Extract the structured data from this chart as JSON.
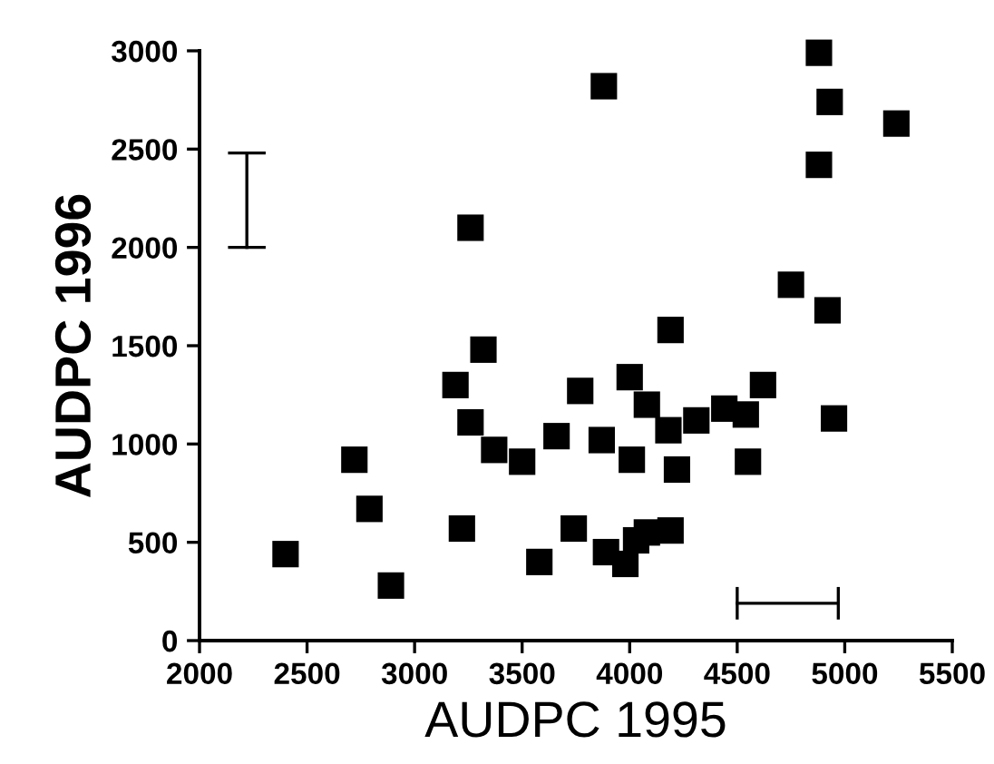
{
  "chart_data": {
    "type": "scatter",
    "xlabel": "AUDPC 1995",
    "ylabel": "AUDPC 1996",
    "series": [
      {
        "color": "#000000",
        "marker": "square",
        "x": [
          2400,
          2720,
          2790,
          2890,
          3190,
          3320,
          3260,
          3370,
          3500,
          3220,
          3580,
          3660,
          3770,
          3740,
          3870,
          3890,
          3980,
          4000,
          4010,
          4030,
          4080,
          4080,
          4180,
          4190,
          4220,
          4310,
          4440,
          4540,
          4550,
          4620,
          4950,
          4190,
          3260,
          3880,
          4880,
          4930,
          5240,
          4880,
          4750,
          4920
        ],
        "values": [
          440,
          920,
          670,
          280,
          1300,
          1480,
          1110,
          970,
          910,
          570,
          400,
          1040,
          1270,
          570,
          1020,
          450,
          390,
          1340,
          920,
          510,
          1200,
          550,
          1070,
          560,
          870,
          1120,
          1180,
          1150,
          910,
          1300,
          1130,
          1580,
          2100,
          2820,
          2990,
          2740,
          2630,
          2420,
          1810,
          1680
        ]
      },
      {
        "type": "line",
        "color": "#000000",
        "marker": "none",
        "x": [
          2220,
          2220
        ],
        "values": [
          2000,
          2480
        ]
      },
      {
        "type": "line",
        "color": "#000000",
        "marker": "none",
        "x": [
          4500,
          4970
        ],
        "values": [
          190,
          190
        ]
      }
    ],
    "xlim": [
      2000,
      5500
    ],
    "xticks": [
      2000,
      2500,
      3000,
      3500,
      4000,
      4500,
      5000,
      5500
    ],
    "ylim": [
      0,
      3000
    ],
    "yticks": [
      0,
      500,
      1000,
      1500,
      2000,
      2500,
      3000
    ],
    "grid": false,
    "legend": false
  }
}
